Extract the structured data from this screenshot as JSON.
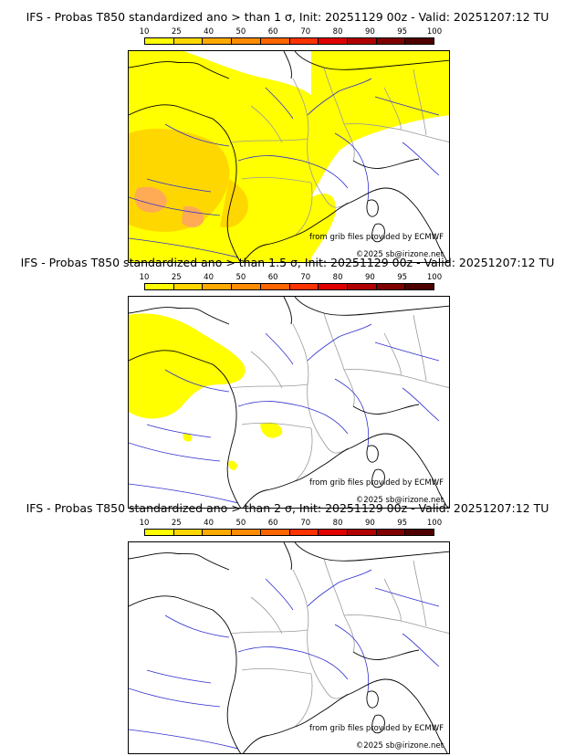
{
  "colors": {
    "scale": [
      "#ffff00",
      "#ffd700",
      "#ffaa00",
      "#ff8c00",
      "#ff6600",
      "#ff3300",
      "#e00000",
      "#b00000",
      "#800000",
      "#500000"
    ],
    "prob_low": "#ffff00",
    "prob_mid": "#ffd700",
    "prob_high": "#ffaa55",
    "rivers": "#3030d0",
    "borders": "#9a9a9a",
    "coast": "#000000"
  },
  "legend": {
    "ticks": [
      "10",
      "25",
      "40",
      "50",
      "60",
      "70",
      "80",
      "90",
      "95",
      "100"
    ]
  },
  "panels": [
    {
      "title": "IFS - Probas T850  standardized ano > than 1 σ, Init: 20251129 00z - Valid: 20251207:12 TU",
      "source_credit": "from grib files provided by ECMWF",
      "copyright": "©2025 sb@irizone.net",
      "coverage": "wide"
    },
    {
      "title": "IFS - Probas T850  standardized ano > than 1.5 σ, Init: 20251129 00z - Valid: 20251207:12 TU",
      "source_credit": "from grib files provided by ECMWF",
      "copyright": "©2025 sb@irizone.net",
      "coverage": "west"
    },
    {
      "title": "IFS - Probas T850  standardized ano > than 2 σ, Init: 20251129 00z - Valid: 20251207:12 TU",
      "source_credit": "from grib files provided by ECMWF",
      "copyright": "©2025 sb@irizone.net",
      "coverage": "none"
    }
  ]
}
